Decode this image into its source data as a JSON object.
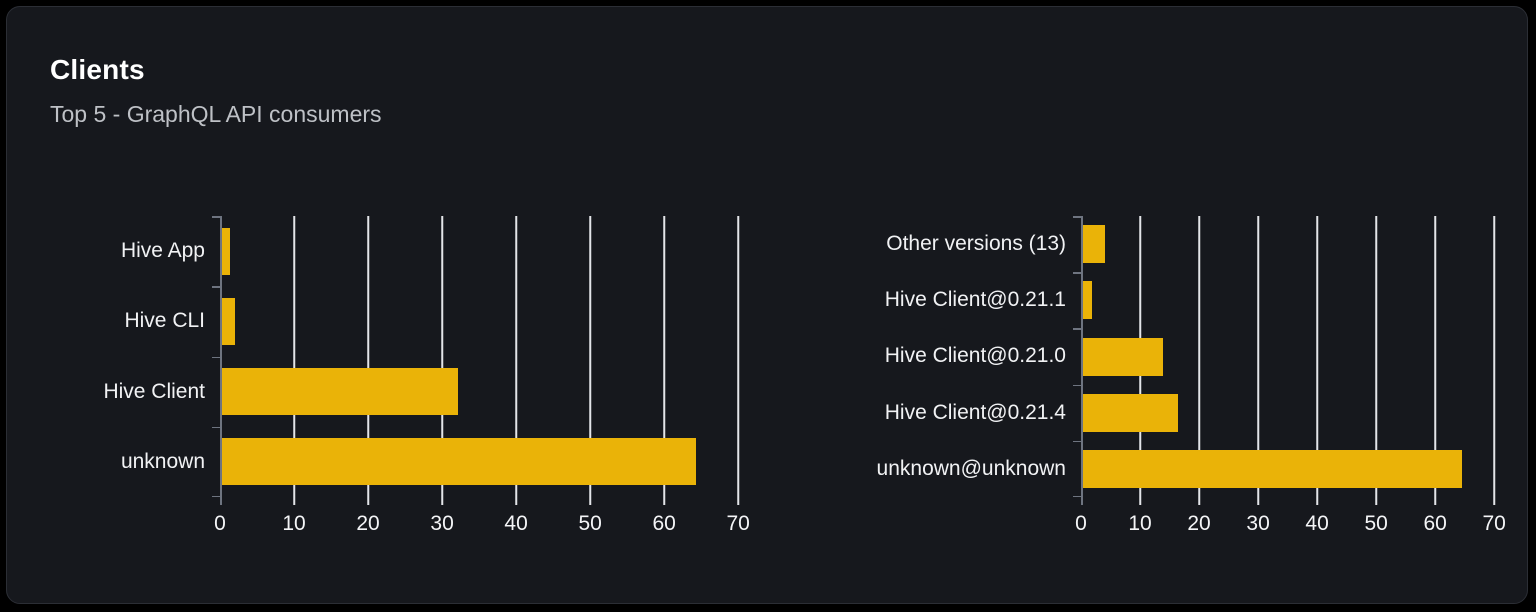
{
  "card": {
    "title": "Clients",
    "subtitle": "Top 5 - GraphQL API consumers"
  },
  "colors": {
    "bar": "#eab308",
    "grid_line": "#e3e5e9",
    "axis": "#6e7480",
    "category_label": "#f1f2f4",
    "tick_label": "#f4f5f7",
    "card_background": "#16181d",
    "card_border": "#2b2e35",
    "page_background": "#000000",
    "title": "#ffffff",
    "subtitle": "#bec1c6"
  },
  "chart_data": [
    {
      "type": "bar",
      "orientation": "horizontal",
      "title": "",
      "categories": [
        "Hive App",
        "Hive CLI",
        "Hive Client",
        "unknown"
      ],
      "values": [
        1.4,
        2.0,
        32.1,
        64.3
      ],
      "x_ticks": [
        0,
        10,
        20,
        30,
        40,
        50,
        60,
        70
      ],
      "xlim": [
        0,
        72
      ],
      "xlabel": "",
      "ylabel": "",
      "grid": true,
      "legend": false,
      "bar_color": "#eab308"
    },
    {
      "type": "bar",
      "orientation": "horizontal",
      "title": "",
      "categories": [
        "Other versions (13)",
        "Hive Client@0.21.1",
        "Hive Client@0.21.0",
        "Hive Client@0.21.4",
        "unknown@unknown"
      ],
      "values": [
        4.0,
        1.8,
        13.9,
        16.4,
        64.5
      ],
      "x_ticks": [
        0,
        10,
        20,
        30,
        40,
        50,
        60,
        70
      ],
      "xlim": [
        0,
        72
      ],
      "xlabel": "",
      "ylabel": "",
      "grid": true,
      "legend": false,
      "bar_color": "#eab308"
    }
  ]
}
